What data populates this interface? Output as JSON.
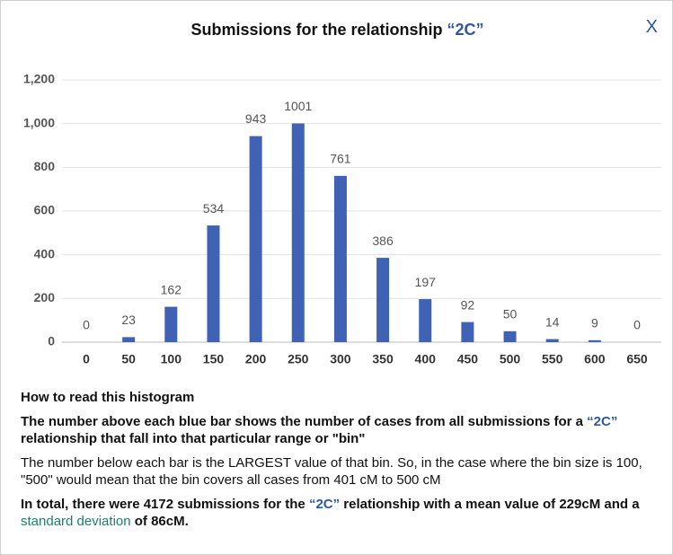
{
  "header": {
    "title": "Submissions for the relationship",
    "highlight": "“2C”",
    "close": "X"
  },
  "chart_data": {
    "type": "bar",
    "categories": [
      "0",
      "50",
      "100",
      "150",
      "200",
      "250",
      "300",
      "350",
      "400",
      "450",
      "500",
      "550",
      "600",
      "650"
    ],
    "values": [
      0,
      23,
      162,
      534,
      943,
      1001,
      761,
      386,
      197,
      92,
      50,
      14,
      9,
      0
    ],
    "color": "#3f62b5",
    "ylim": [
      0,
      1200
    ],
    "yticks": [
      0,
      200,
      400,
      600,
      800,
      {
        "value": 1000,
        "label": "1,000"
      },
      {
        "value": 1200,
        "label": "1,200"
      }
    ],
    "grid": true
  },
  "notes": {
    "heading": "How to read this histogram",
    "p1": [
      "The number above each blue bar shows the number of cases from all submissions for a ",
      "“2C”",
      " relationship that fall into that particular range or \"bin\""
    ],
    "p2": "The number below each bar is the LARGEST value of that bin. So, in the case where the bin size is 100, \"500\" would mean that the bin covers all cases from 401 cM to 500 cM",
    "p3": [
      "In total, there were 4172 submissions for the ",
      "“2C”",
      " relationship with a mean value of 229cM and a ",
      "standard deviation",
      " of 86cM."
    ]
  }
}
